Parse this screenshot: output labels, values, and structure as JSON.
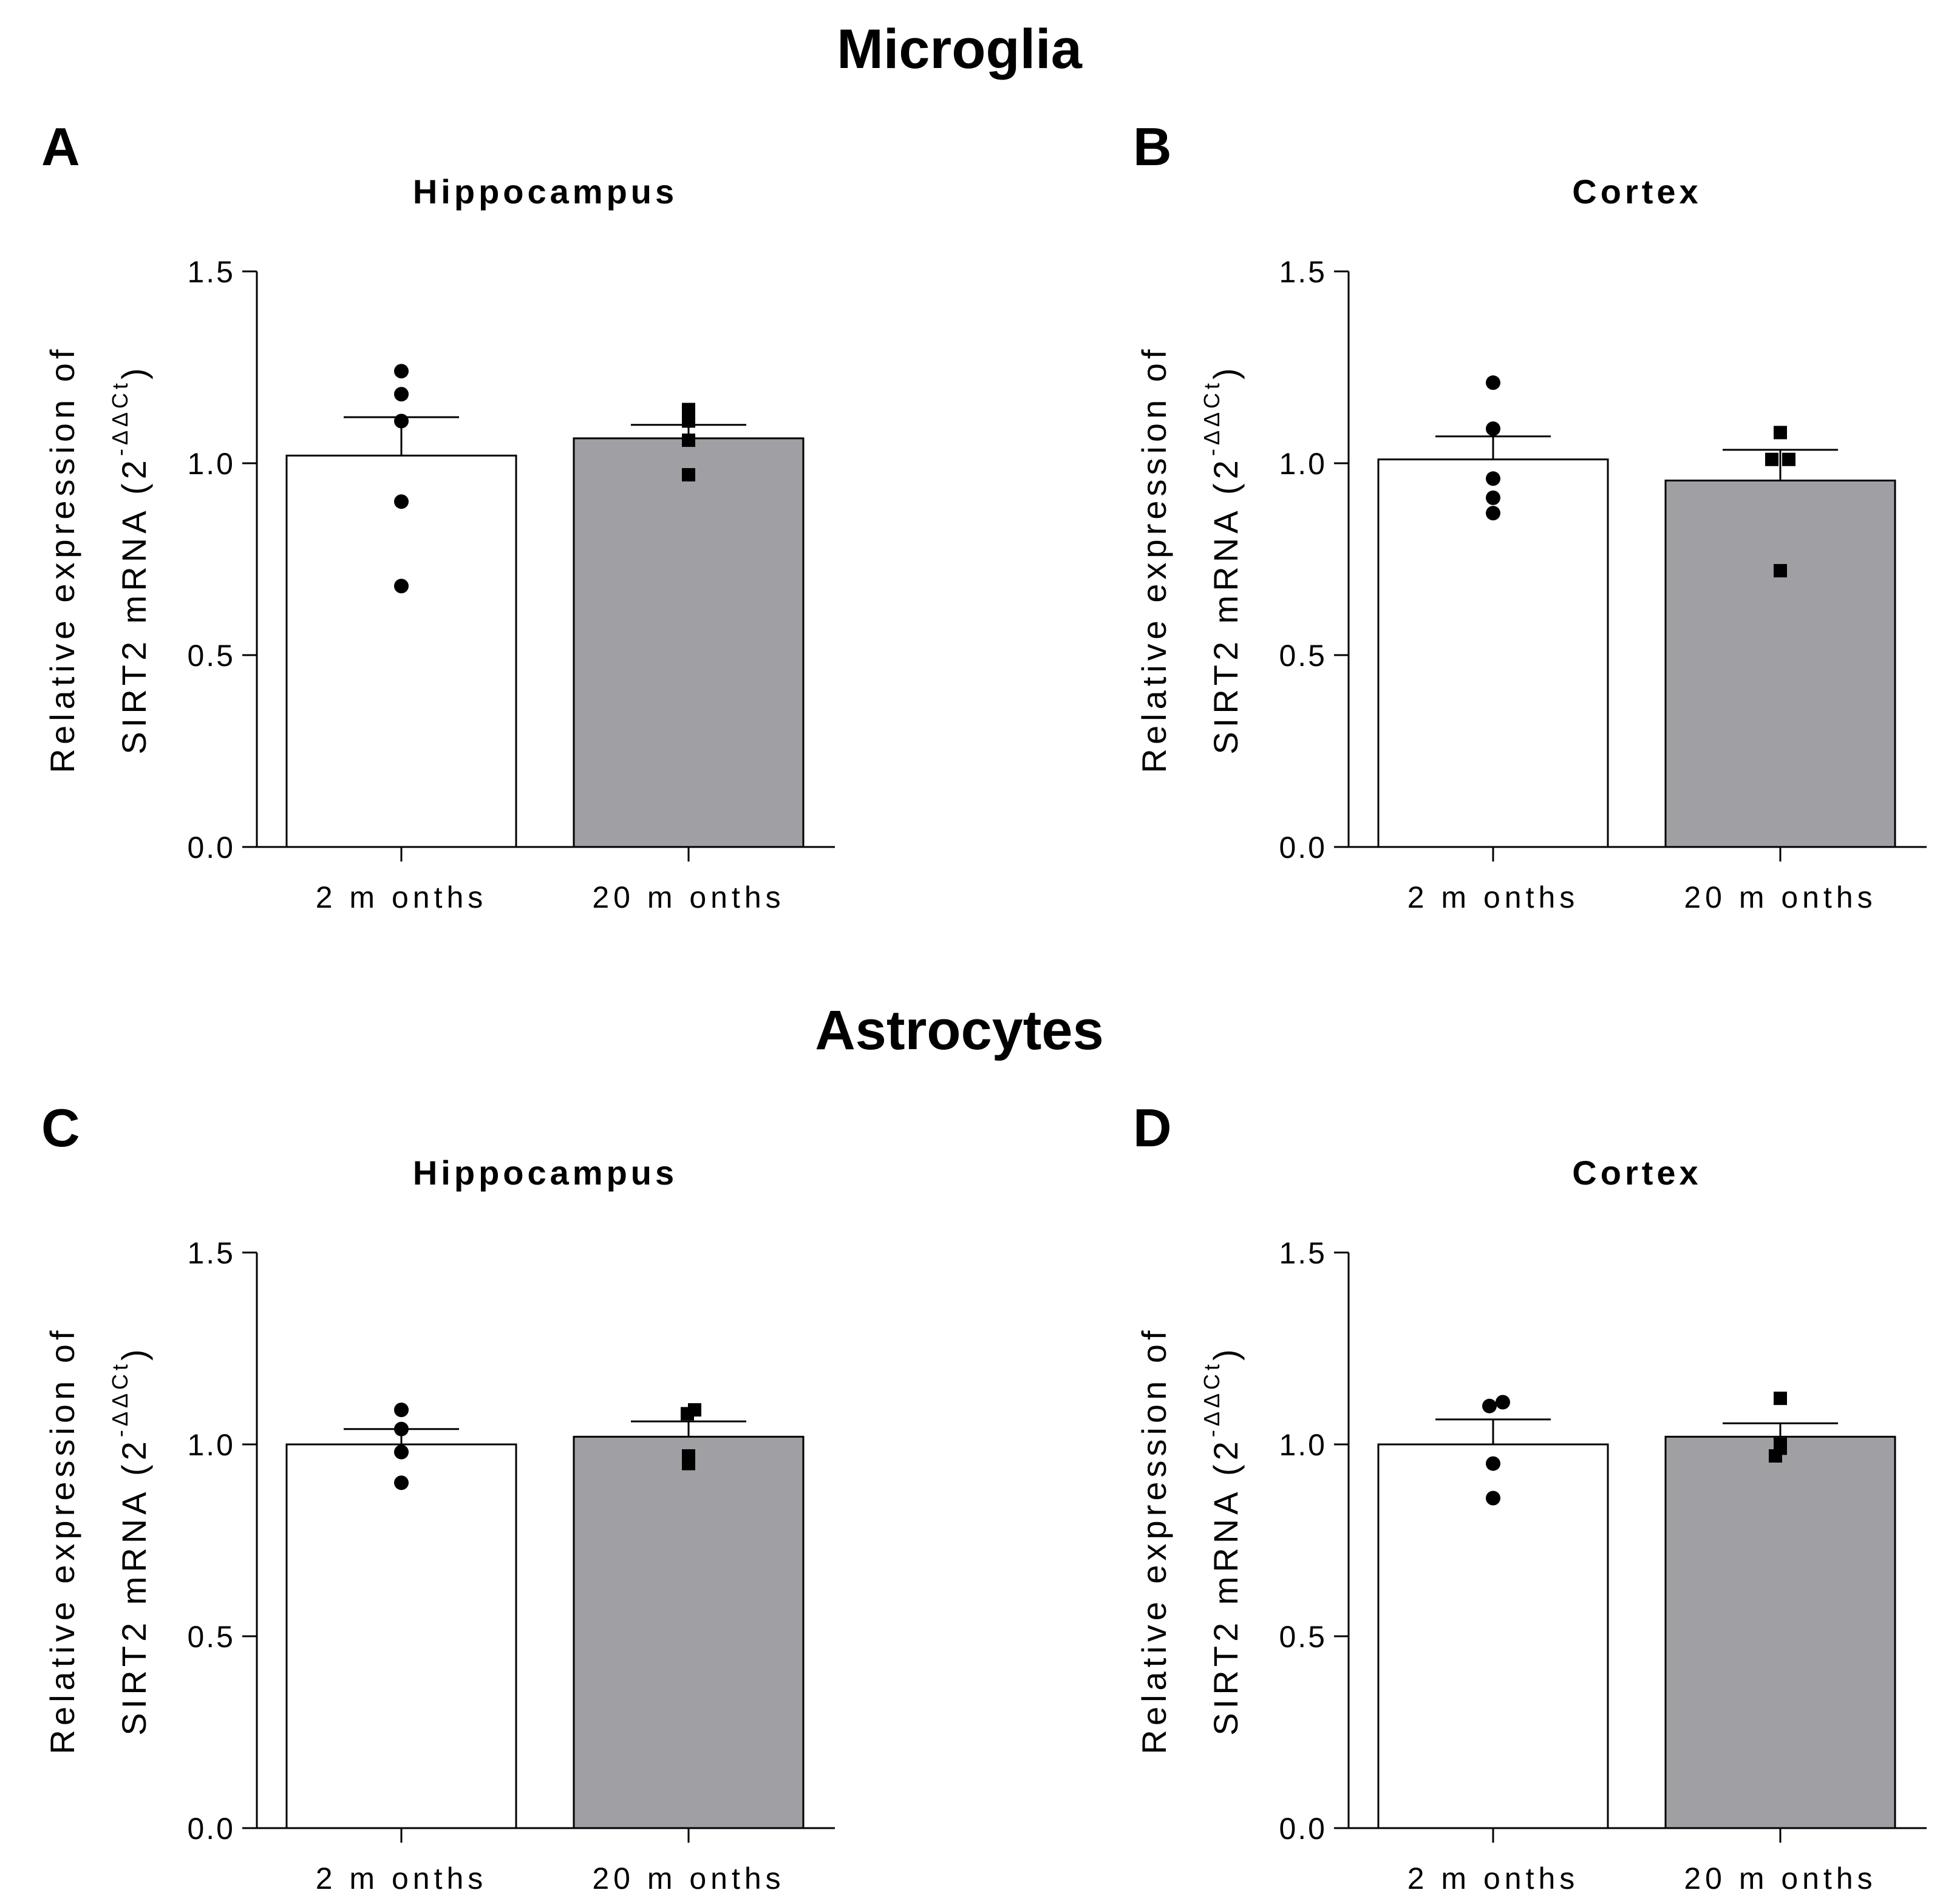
{
  "sections": [
    {
      "title": "Microglia"
    },
    {
      "title": "Astrocytes"
    }
  ],
  "y_axis_label": {
    "line1": "Relative expression of",
    "line2_prefix": "SIRT2 mRNA (2",
    "superscript": "-ΔΔCt",
    "line2_suffix": ")"
  },
  "colors": {
    "bar_2_months": "#ffffff",
    "bar_20_months": "#a0a0a4",
    "marker": "#000000"
  },
  "chart_data": [
    {
      "type": "bar",
      "panel": "A",
      "title": "Hippocampus",
      "categories": [
        "2 m onths",
        "20 m onths"
      ],
      "ylim": [
        0,
        1.5
      ],
      "yticks": [
        "0.0",
        "0.5",
        "1.0",
        "1.5"
      ],
      "values": [
        1.02,
        1.065
      ],
      "errors": [
        0.1,
        0.035
      ],
      "points": [
        [
          1.24,
          1.18,
          1.11,
          0.9,
          0.68
        ],
        [
          1.14,
          1.11,
          1.06,
          0.97
        ]
      ],
      "markers": [
        "circle",
        "square"
      ]
    },
    {
      "type": "bar",
      "panel": "B",
      "title": "Cortex",
      "categories": [
        "2 m onths",
        "20 m onths"
      ],
      "ylim": [
        0,
        1.5
      ],
      "yticks": [
        "0.0",
        "0.5",
        "1.0",
        "1.5"
      ],
      "values": [
        1.01,
        0.955
      ],
      "errors": [
        0.06,
        0.08
      ],
      "points": [
        [
          1.21,
          1.09,
          0.96,
          0.91,
          0.87
        ],
        [
          1.08,
          1.01,
          1.01,
          0.72
        ]
      ],
      "markers": [
        "circle",
        "square"
      ]
    },
    {
      "type": "bar",
      "panel": "C",
      "title": "Hippocampus",
      "categories": [
        "2 m onths",
        "20 m onths"
      ],
      "ylim": [
        0,
        1.5
      ],
      "yticks": [
        "0.0",
        "0.5",
        "1.0",
        "1.5"
      ],
      "values": [
        1.0,
        1.02
      ],
      "errors": [
        0.04,
        0.04
      ],
      "points": [
        [
          1.09,
          1.04,
          0.98,
          0.9
        ],
        [
          1.09,
          1.08,
          0.97,
          0.95
        ]
      ],
      "markers": [
        "circle",
        "square"
      ]
    },
    {
      "type": "bar",
      "panel": "D",
      "title": "Cortex",
      "categories": [
        "2 m onths",
        "20 m onths"
      ],
      "ylim": [
        0,
        1.5
      ],
      "yticks": [
        "0.0",
        "0.5",
        "1.0",
        "1.5"
      ],
      "values": [
        1.0,
        1.02
      ],
      "errors": [
        0.065,
        0.035
      ],
      "points": [
        [
          1.11,
          1.1,
          0.95,
          0.86
        ],
        [
          1.12,
          1.0,
          0.99,
          0.97
        ]
      ],
      "markers": [
        "circle",
        "square"
      ]
    }
  ]
}
